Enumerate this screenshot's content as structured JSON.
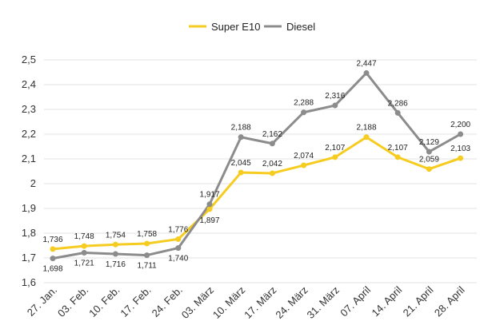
{
  "chart_data": {
    "type": "line",
    "categories": [
      "27. Jan.",
      "03. Feb.",
      "10. Feb.",
      "17. Feb.",
      "24. Feb.",
      "03. März",
      "10. März",
      "17. März",
      "24. März",
      "31. März",
      "07. April",
      "14. April",
      "21. April",
      "28. April"
    ],
    "series": [
      {
        "name": "Super E10",
        "color": "#f5cc1f",
        "values": [
          1.736,
          1.748,
          1.754,
          1.758,
          1.776,
          1.897,
          2.045,
          2.042,
          2.074,
          2.107,
          2.188,
          2.107,
          2.059,
          2.103
        ],
        "labels": [
          "1,736",
          "1,748",
          "1,754",
          "1,758",
          "1,776",
          "1,897",
          "2,045",
          "2,042",
          "2,074",
          "2,107",
          "2,188",
          "2,107",
          "2,059",
          "2,103"
        ]
      },
      {
        "name": "Diesel",
        "color": "#8c8c8c",
        "values": [
          1.698,
          1.721,
          1.716,
          1.711,
          1.74,
          1.917,
          2.188,
          2.162,
          2.288,
          2.316,
          2.447,
          2.286,
          2.129,
          2.2
        ],
        "labels": [
          "1,698",
          "1,721",
          "1,716",
          "1,711",
          "1,740",
          "1,917",
          "2,188",
          "2,162",
          "2,288",
          "2,316",
          "2,447",
          "2,286",
          "2,129",
          "2,200"
        ]
      }
    ],
    "yticks": [
      1.6,
      1.7,
      1.8,
      1.9,
      2.0,
      2.1,
      2.2,
      2.3,
      2.4,
      2.5
    ],
    "ytick_labels": [
      "1,6",
      "1,7",
      "1,8",
      "1,9",
      "2",
      "2,1",
      "2,2",
      "2,3",
      "2,4",
      "2,5"
    ],
    "ylim": [
      1.6,
      2.5
    ],
    "grid": true,
    "legend": "top-center",
    "title": "",
    "xlabel": "",
    "ylabel": ""
  }
}
